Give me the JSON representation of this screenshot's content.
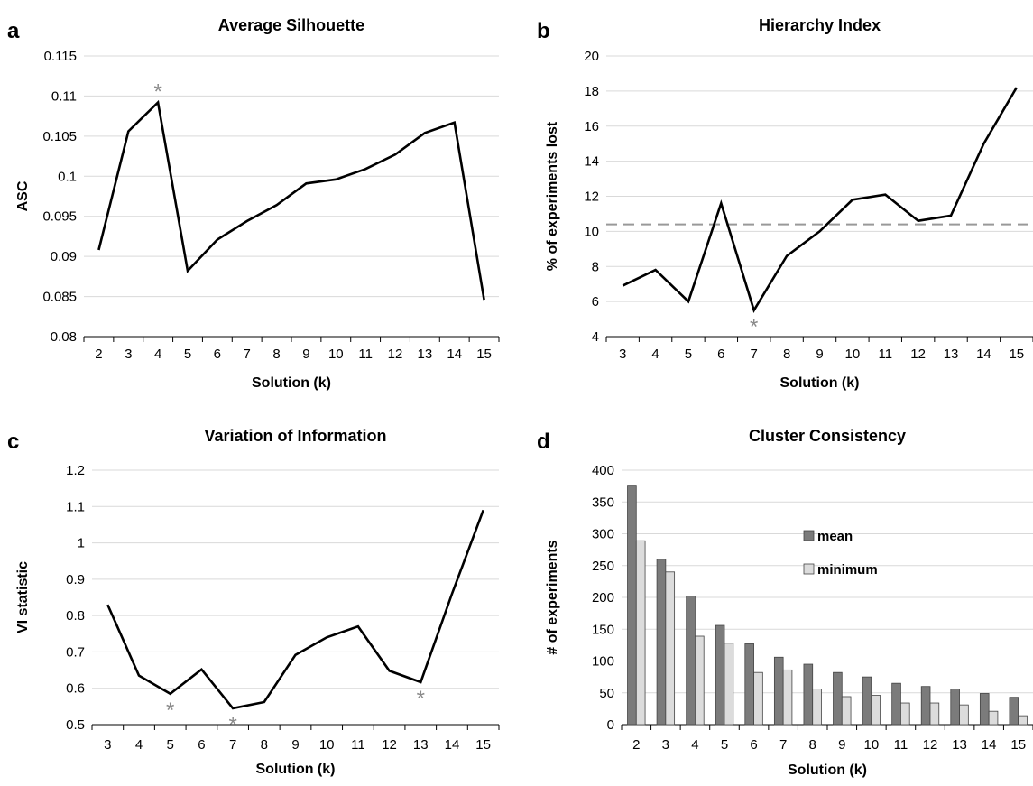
{
  "chart_data": [
    {
      "id": "a",
      "type": "line",
      "panel_label": "a",
      "title": "Average Silhouette",
      "xlabel": "Solution (k)",
      "ylabel": "ASC",
      "ylim": [
        0.08,
        0.115
      ],
      "yticks": [
        "0.08",
        "0.085",
        "0.09",
        "0.095",
        "0.1",
        "0.105",
        "0.11",
        "0.115"
      ],
      "x": [
        "2",
        "3",
        "4",
        "5",
        "6",
        "7",
        "8",
        "9",
        "10",
        "11",
        "12",
        "13",
        "14",
        "15"
      ],
      "series": [
        {
          "values": [
            0.0908,
            0.1056,
            0.1092,
            0.0882,
            0.0921,
            0.0944,
            0.0964,
            0.0991,
            0.0996,
            0.1009,
            0.1027,
            0.1054,
            0.1067,
            0.0846
          ],
          "color": "#000000"
        }
      ],
      "markers": [
        {
          "x": "4",
          "symbol": "*"
        }
      ],
      "grid": true
    },
    {
      "id": "b",
      "type": "line",
      "panel_label": "b",
      "title": "Hierarchy Index",
      "xlabel": "Solution (k)",
      "ylabel": "% of experiments lost",
      "ylim": [
        4,
        20
      ],
      "yticks": [
        "4",
        "6",
        "8",
        "10",
        "12",
        "14",
        "16",
        "18",
        "20"
      ],
      "x": [
        "3",
        "4",
        "5",
        "6",
        "7",
        "8",
        "9",
        "10",
        "11",
        "12",
        "13",
        "14",
        "15"
      ],
      "series": [
        {
          "values": [
            6.9,
            7.8,
            6.0,
            11.6,
            5.5,
            8.6,
            10.0,
            11.8,
            12.1,
            10.6,
            10.9,
            15.0,
            18.2
          ],
          "color": "#000000"
        }
      ],
      "reference_line": {
        "value": 10.4,
        "style": "dashed",
        "color": "#999999"
      },
      "markers": [
        {
          "x": "7",
          "symbol": "*"
        }
      ],
      "grid": true
    },
    {
      "id": "c",
      "type": "line",
      "panel_label": "c",
      "title": "Variation of Information",
      "xlabel": "Solution (k)",
      "ylabel": "VI statistic",
      "ylim": [
        0.5,
        1.2
      ],
      "yticks": [
        "0.5",
        "0.6",
        "0.7",
        "0.8",
        "0.9",
        "1",
        "1.1",
        "1.2"
      ],
      "x": [
        "3",
        "4",
        "5",
        "6",
        "7",
        "8",
        "9",
        "10",
        "11",
        "12",
        "13",
        "14",
        "15"
      ],
      "series": [
        {
          "values": [
            0.83,
            0.635,
            0.585,
            0.652,
            0.545,
            0.562,
            0.692,
            0.74,
            0.77,
            0.648,
            0.617,
            0.86,
            1.09
          ],
          "color": "#000000"
        }
      ],
      "markers": [
        {
          "x": "5",
          "symbol": "*"
        },
        {
          "x": "7",
          "symbol": "*"
        },
        {
          "x": "13",
          "symbol": "*"
        }
      ],
      "grid": true
    },
    {
      "id": "d",
      "type": "bar",
      "panel_label": "d",
      "title": "Cluster Consistency",
      "xlabel": "Solution (k)",
      "ylabel": "# of experiments",
      "ylim": [
        0,
        400
      ],
      "yticks": [
        "0",
        "50",
        "100",
        "150",
        "200",
        "250",
        "300",
        "350",
        "400"
      ],
      "categories": [
        "2",
        "3",
        "4",
        "5",
        "6",
        "7",
        "8",
        "9",
        "10",
        "11",
        "12",
        "13",
        "14",
        "15"
      ],
      "series": [
        {
          "name": "mean",
          "values": [
            375,
            260,
            202,
            156,
            127,
            106,
            95,
            82,
            75,
            65,
            60,
            56,
            49,
            43
          ],
          "color": "#7b7b7b"
        },
        {
          "name": "minimum",
          "values": [
            289,
            240,
            139,
            128,
            82,
            86,
            56,
            44,
            46,
            34,
            34,
            31,
            21,
            14
          ],
          "color": "#dcdcdc"
        }
      ],
      "legend_position": "center-right",
      "grid": true
    }
  ]
}
